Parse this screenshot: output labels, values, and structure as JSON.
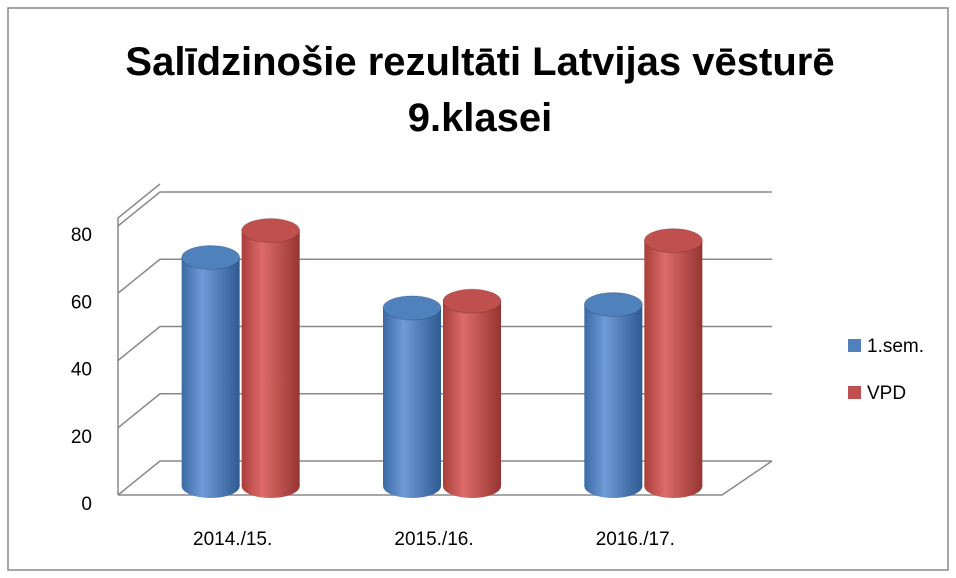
{
  "chart_data": {
    "type": "bar3d",
    "title": "Salīdzinošie rezultāti Latvijas vēsturē 9.klasei",
    "categories": [
      "2014./15.",
      "2015./16.",
      "2016./17."
    ],
    "series": [
      {
        "name": "1.sem.",
        "color": "#4f81bd",
        "values": [
          65,
          50,
          51
        ]
      },
      {
        "name": "VPD",
        "color": "#c0504d",
        "values": [
          73,
          52,
          70
        ]
      }
    ],
    "ylim": [
      0,
      80
    ],
    "yticks": [
      0,
      20,
      40,
      60,
      80
    ],
    "grid": true,
    "legend": "right"
  }
}
